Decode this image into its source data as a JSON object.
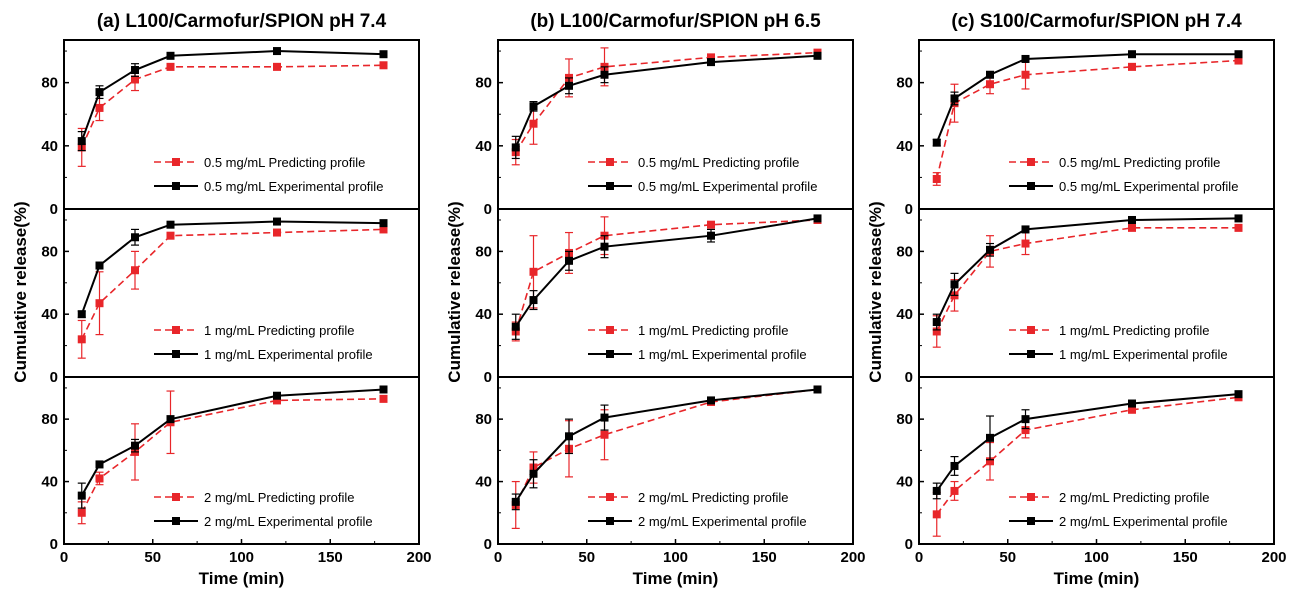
{
  "colors": {
    "predicting": "#e8262a",
    "experimental": "#000000",
    "axis": "#000000",
    "background": "#ffffff"
  },
  "chart_data": [
    {
      "type": "line",
      "title": "(a) L100/Carmofur/SPION pH 7.4",
      "xlabel": "Time (min)",
      "ylabel": "Cumulative release(%)",
      "xlim": [
        0,
        200
      ],
      "xticks": [
        "0",
        "50",
        "100",
        "150",
        "200"
      ],
      "ylim": [
        0,
        107
      ],
      "yticks": [
        "0",
        "40",
        "80"
      ],
      "legend_position": "bottom-right",
      "grid": false,
      "x": [
        10,
        20,
        40,
        60,
        120,
        180
      ],
      "panels": [
        {
          "series": [
            {
              "name": "0.5 mg/mL Predicting profile",
              "style": "dashed",
              "values": [
                39,
                64,
                82,
                90,
                90,
                91
              ],
              "errors": [
                12,
                8,
                7,
                2,
                2,
                2
              ]
            },
            {
              "name": "0.5 mg/mL Experimental profile",
              "style": "solid",
              "values": [
                43,
                74,
                88,
                97,
                100,
                98
              ],
              "errors": [
                6,
                4,
                4,
                2,
                1,
                1
              ]
            }
          ]
        },
        {
          "series": [
            {
              "name": "1 mg/mL Predicting profile",
              "style": "dashed",
              "values": [
                24,
                47,
                68,
                90,
                92,
                94
              ],
              "errors": [
                12,
                20,
                12,
                2,
                2,
                2
              ]
            },
            {
              "name": "1 mg/mL Experimental profile",
              "style": "solid",
              "values": [
                40,
                71,
                89,
                97,
                99,
                98
              ],
              "errors": [
                2,
                2,
                5,
                2,
                1,
                1
              ]
            }
          ]
        },
        {
          "series": [
            {
              "name": "2 mg/mL Predicting profile",
              "style": "dashed",
              "values": [
                20,
                42,
                59,
                78,
                92,
                93
              ],
              "errors": [
                7,
                4,
                18,
                20,
                2,
                2
              ]
            },
            {
              "name": "2 mg/mL Experimental profile",
              "style": "solid",
              "values": [
                31,
                51,
                63,
                80,
                95,
                99
              ],
              "errors": [
                8,
                2,
                4,
                2,
                1,
                1
              ]
            }
          ]
        }
      ]
    },
    {
      "type": "line",
      "title": "(b) L100/Carmofur/SPION pH 6.5",
      "xlabel": "Time (min)",
      "ylabel": "Cumulative release(%)",
      "xlim": [
        0,
        200
      ],
      "xticks": [
        "0",
        "50",
        "100",
        "150",
        "200"
      ],
      "ylim": [
        0,
        107
      ],
      "yticks": [
        "0",
        "40",
        "80"
      ],
      "legend_position": "bottom-right",
      "grid": false,
      "x": [
        10,
        20,
        40,
        60,
        120,
        180
      ],
      "panels": [
        {
          "series": [
            {
              "name": "0.5 mg/mL Predicting profile",
              "style": "dashed",
              "values": [
                36,
                54,
                83,
                90,
                96,
                99
              ],
              "errors": [
                8,
                13,
                12,
                12,
                2,
                1
              ]
            },
            {
              "name": "0.5 mg/mL Experimental profile",
              "style": "solid",
              "values": [
                39,
                65,
                78,
                85,
                93,
                97
              ],
              "errors": [
                7,
                3,
                5,
                5,
                2,
                1
              ]
            }
          ]
        },
        {
          "series": [
            {
              "name": "1 mg/mL Predicting profile",
              "style": "dashed",
              "values": [
                29,
                67,
                79,
                90,
                97,
                100
              ],
              "errors": [
                6,
                23,
                13,
                12,
                2,
                1
              ]
            },
            {
              "name": "1 mg/mL Experimental profile",
              "style": "solid",
              "values": [
                32,
                49,
                74,
                83,
                90,
                101
              ],
              "errors": [
                8,
                6,
                6,
                7,
                4,
                1
              ]
            }
          ]
        },
        {
          "series": [
            {
              "name": "2 mg/mL Predicting profile",
              "style": "dashed",
              "values": [
                25,
                49,
                61,
                70,
                91,
                99
              ],
              "errors": [
                15,
                10,
                18,
                16,
                2,
                1
              ]
            },
            {
              "name": "2 mg/mL Experimental profile",
              "style": "solid",
              "values": [
                27,
                45,
                69,
                81,
                92,
                99
              ],
              "errors": [
                5,
                9,
                11,
                8,
                2,
                1
              ]
            }
          ]
        }
      ]
    },
    {
      "type": "line",
      "title": "(c) S100/Carmofur/SPION pH 7.4",
      "xlabel": "Time (min)",
      "ylabel": "Cumulative release(%)",
      "xlim": [
        0,
        200
      ],
      "xticks": [
        "0",
        "50",
        "100",
        "150",
        "200"
      ],
      "ylim": [
        0,
        107
      ],
      "yticks": [
        "0",
        "40",
        "80"
      ],
      "legend_position": "bottom-right",
      "grid": false,
      "x": [
        10,
        20,
        40,
        60,
        120,
        180
      ],
      "panels": [
        {
          "series": [
            {
              "name": "0.5 mg/mL Predicting profile",
              "style": "dashed",
              "values": [
                19,
                67,
                79,
                85,
                90,
                94
              ],
              "errors": [
                4,
                12,
                6,
                9,
                2,
                1
              ]
            },
            {
              "name": "0.5 mg/mL Experimental profile",
              "style": "solid",
              "values": [
                42,
                70,
                85,
                95,
                98,
                98
              ],
              "errors": [
                2,
                4,
                2,
                2,
                1,
                1
              ]
            }
          ]
        },
        {
          "series": [
            {
              "name": "1 mg/mL Predicting profile",
              "style": "dashed",
              "values": [
                29,
                52,
                80,
                85,
                95,
                95
              ],
              "errors": [
                10,
                10,
                10,
                7,
                2,
                2
              ]
            },
            {
              "name": "1 mg/mL Experimental profile",
              "style": "solid",
              "values": [
                35,
                59,
                81,
                94,
                100,
                101
              ],
              "errors": [
                5,
                7,
                4,
                2,
                1,
                1
              ]
            }
          ]
        },
        {
          "series": [
            {
              "name": "2 mg/mL Predicting profile",
              "style": "dashed",
              "values": [
                19,
                34,
                53,
                73,
                86,
                94
              ],
              "errors": [
                14,
                6,
                12,
                5,
                2,
                1
              ]
            },
            {
              "name": "2 mg/mL Experimental profile",
              "style": "solid",
              "values": [
                34,
                50,
                68,
                80,
                90,
                96
              ],
              "errors": [
                5,
                6,
                14,
                6,
                2,
                1
              ]
            }
          ]
        }
      ]
    }
  ]
}
